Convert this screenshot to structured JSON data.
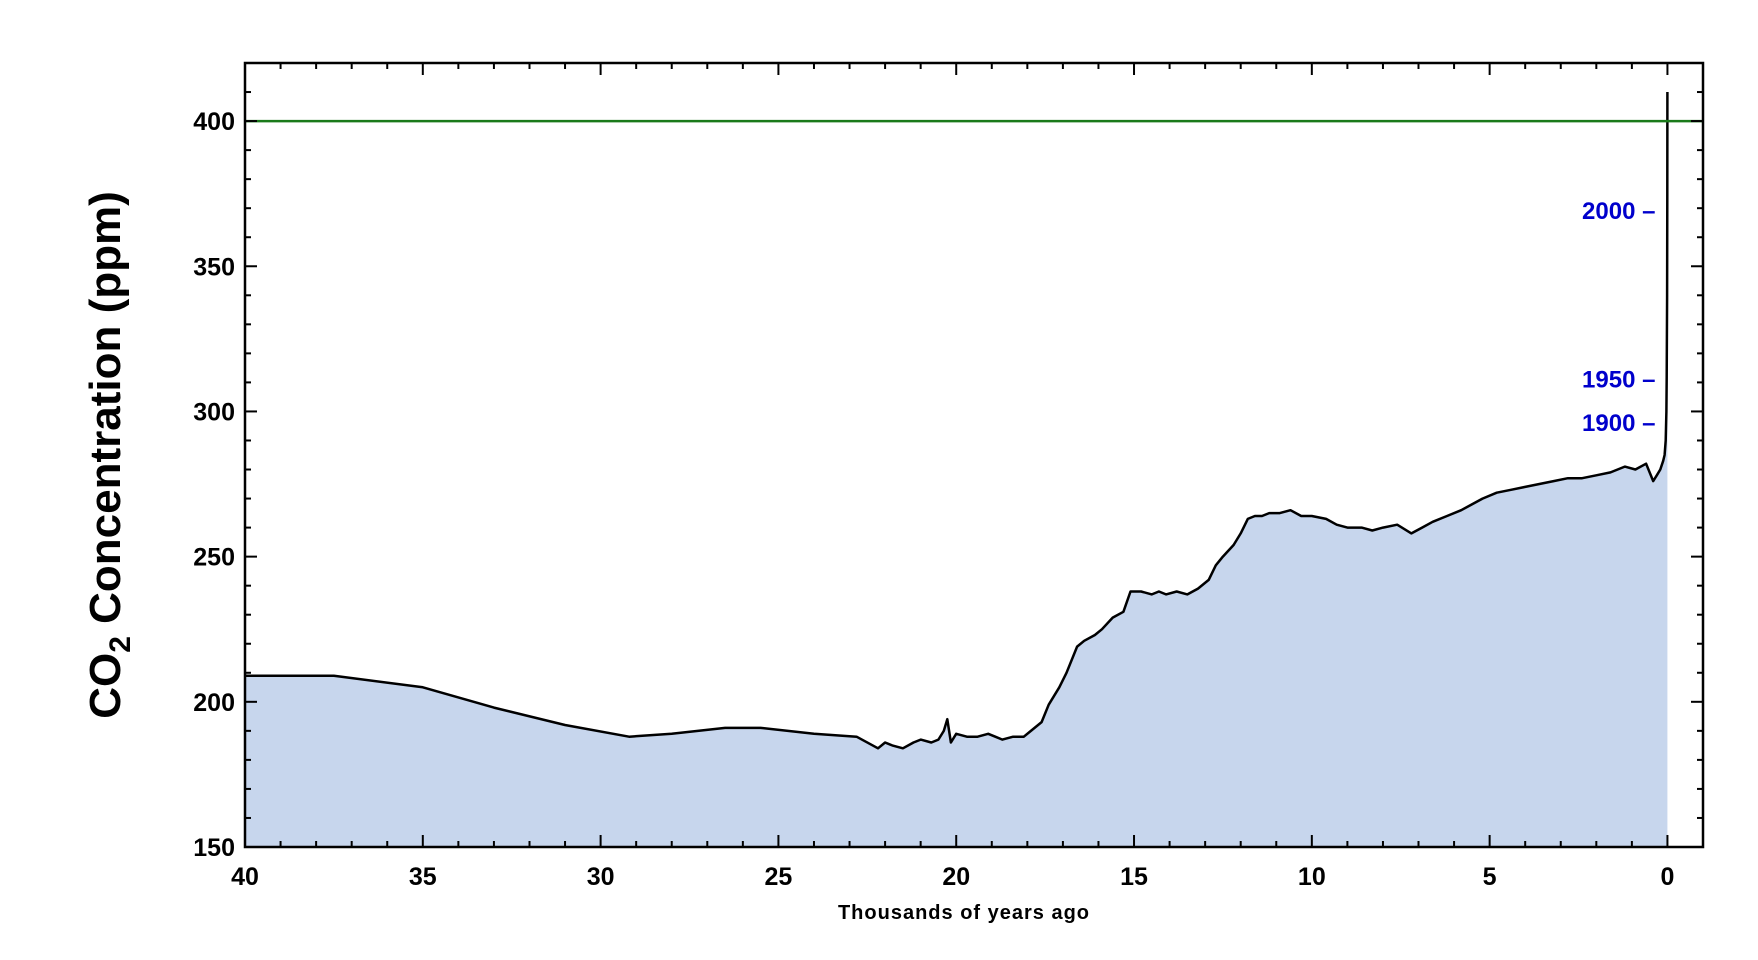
{
  "chart_data": {
    "type": "area",
    "xlabel": "Thousands of years ago",
    "ylabel_main": "CO",
    "ylabel_sub": "2",
    "ylabel_rest": " Concentration (ppm)",
    "xlim": [
      40,
      -1
    ],
    "ylim": [
      150,
      420
    ],
    "x_ticks": [
      40,
      35,
      30,
      25,
      20,
      15,
      10,
      5,
      0
    ],
    "x_tick_labels": [
      "40",
      "35",
      "30",
      "25",
      "20",
      "15",
      "10",
      "5",
      "0"
    ],
    "y_ticks": [
      150,
      200,
      250,
      300,
      350,
      400
    ],
    "y_tick_labels": [
      "150",
      "200",
      "250",
      "300",
      "350",
      "400"
    ],
    "reference_line": {
      "y": 400,
      "color": "#1a7a1a"
    },
    "fill_color": "#c7d6ed",
    "line_color": "#000000",
    "annotations": [
      {
        "label": "2000 –",
        "x": 0.0,
        "y": 369
      },
      {
        "label": "1950 –",
        "x": 0.0,
        "y": 311
      },
      {
        "label": "1900 –",
        "x": 0.0,
        "y": 296
      }
    ],
    "series": [
      {
        "x": [
          40,
          37.5,
          35,
          33,
          31,
          29.2,
          28,
          26.5,
          25.5,
          24,
          22.8,
          22.2,
          22.0,
          21.8,
          21.5,
          21.2,
          21.0,
          20.7,
          20.5,
          20.35,
          20.25,
          20.15,
          20.0,
          19.7,
          19.4,
          19.1,
          18.9,
          18.7,
          18.4,
          18.1,
          17.9,
          17.6,
          17.4,
          17.1,
          16.9,
          16.6,
          16.4,
          16.1,
          15.9,
          15.6,
          15.3,
          15.1,
          14.8,
          14.5,
          14.3,
          14.1,
          13.8,
          13.5,
          13.2,
          12.9,
          12.7,
          12.5,
          12.2,
          12.0,
          11.8,
          11.6,
          11.4,
          11.2,
          10.9,
          10.6,
          10.3,
          10.0,
          9.6,
          9.3,
          9.0,
          8.6,
          8.3,
          8.0,
          7.6,
          7.2,
          6.9,
          6.6,
          6.2,
          5.8,
          5.5,
          5.2,
          4.8,
          4.4,
          4.0,
          3.6,
          3.2,
          2.8,
          2.4,
          2.0,
          1.6,
          1.2,
          0.9,
          0.6,
          0.4,
          0.3,
          0.2,
          0.12,
          0.08,
          0.05,
          0.03,
          0.02,
          0.01,
          0.005,
          0.0
        ],
        "y": [
          209,
          209,
          205,
          198,
          192,
          188,
          189,
          191,
          191,
          189,
          188,
          184,
          186,
          185,
          184,
          186,
          187,
          186,
          187,
          190,
          194,
          186,
          189,
          188,
          188,
          189,
          188,
          187,
          188,
          188,
          190,
          193,
          199,
          205,
          210,
          219,
          221,
          223,
          225,
          229,
          231,
          238,
          238,
          237,
          238,
          237,
          238,
          237,
          239,
          242,
          247,
          250,
          254,
          258,
          263,
          264,
          264,
          265,
          265,
          266,
          264,
          264,
          263,
          261,
          260,
          260,
          259,
          260,
          261,
          258,
          260,
          262,
          264,
          266,
          268,
          270,
          272,
          273,
          274,
          275,
          276,
          277,
          277,
          278,
          279,
          281,
          280,
          282,
          276,
          278,
          280,
          283,
          285,
          290,
          300,
          312,
          340,
          375,
          410
        ]
      }
    ]
  }
}
